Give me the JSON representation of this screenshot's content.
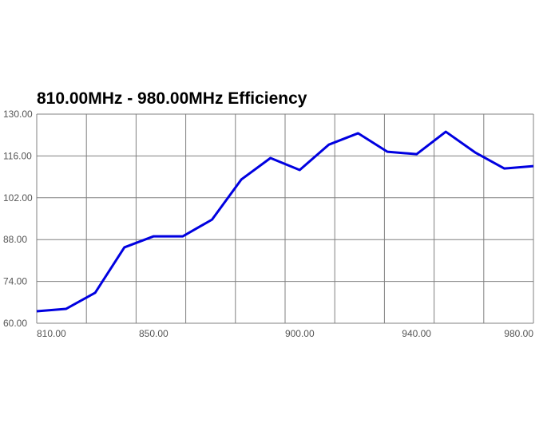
{
  "chart_data": {
    "type": "line",
    "title": "810.00MHz - 980.00MHz Efficiency",
    "x": [
      810,
      820,
      830,
      840,
      850,
      860,
      870,
      880,
      890,
      900,
      910,
      920,
      930,
      940,
      950,
      960,
      970,
      980
    ],
    "series": [
      {
        "color": "#0000e0",
        "values": [
          64.0,
          64.8,
          70.2,
          85.4,
          89.1,
          89.1,
          94.7,
          108.1,
          115.3,
          111.3,
          119.8,
          123.6,
          117.4,
          116.6,
          124.1,
          117.2,
          111.8,
          112.6
        ]
      }
    ],
    "xlim": [
      810,
      980
    ],
    "xticks": [
      {
        "value": 810,
        "label": "810.00"
      },
      {
        "value": 850,
        "label": "850.00"
      },
      {
        "value": 900,
        "label": "900.00"
      },
      {
        "value": 940,
        "label": "940.00"
      },
      {
        "value": 980,
        "label": "980.00"
      }
    ],
    "xgrid": [
      810,
      827,
      844,
      861,
      878,
      895,
      912,
      929,
      946,
      963,
      980
    ],
    "ylim": [
      60,
      130
    ],
    "yticks": [
      {
        "value": 60,
        "label": "60.00"
      },
      {
        "value": 74,
        "label": "74.00"
      },
      {
        "value": 88,
        "label": "88.00"
      },
      {
        "value": 102,
        "label": "102.00"
      },
      {
        "value": 116,
        "label": "116.00"
      },
      {
        "value": 130,
        "label": "130.00"
      }
    ],
    "grid": true
  }
}
